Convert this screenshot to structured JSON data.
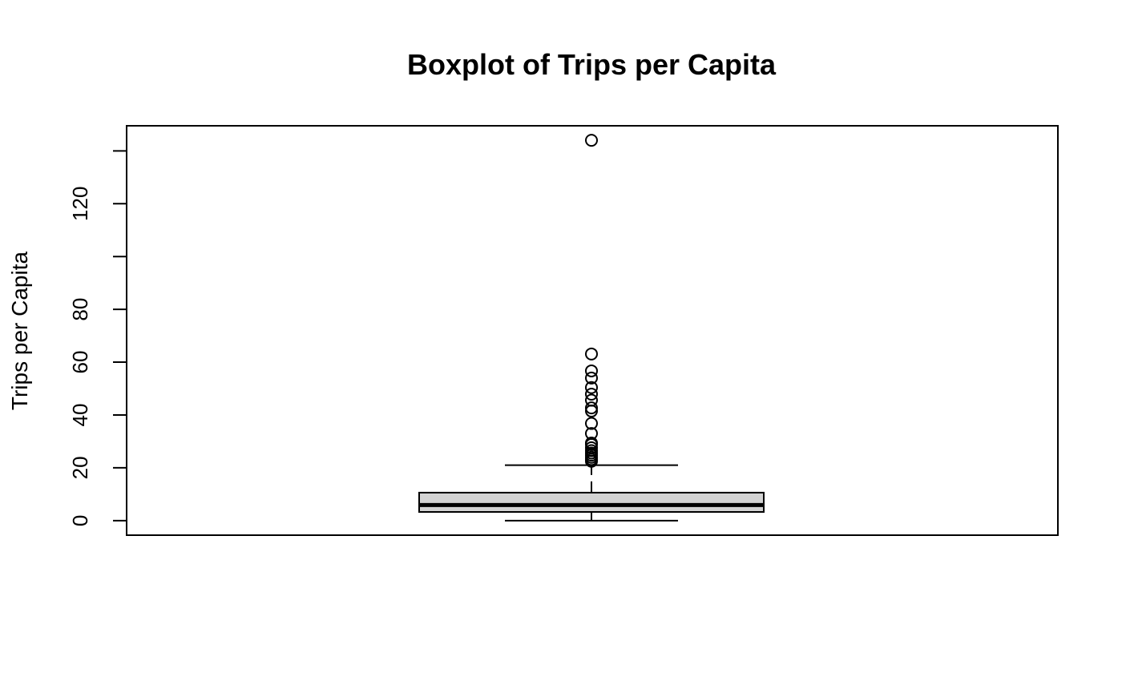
{
  "chart_data": {
    "type": "boxplot",
    "title": "Boxplot of Trips per Capita",
    "xlabel": "",
    "ylabel": "Trips per Capita",
    "ylim": [
      -5.5,
      149.5
    ],
    "yticks": [
      0,
      20,
      40,
      60,
      80,
      100,
      120,
      140
    ],
    "ytick_labels": [
      "0",
      "20",
      "40",
      "60",
      "80",
      "",
      "120",
      ""
    ],
    "grid": false,
    "box": {
      "min": 0,
      "q1": 3.3,
      "median": 5.9,
      "q3": 10.6,
      "max": 21.0,
      "outliers": [
        22.5,
        23.2,
        24.0,
        24.8,
        25.6,
        26.5,
        27.6,
        28.8,
        29.4,
        33.0,
        36.8,
        41.5,
        42.7,
        45.6,
        47.9,
        50.4,
        54.0,
        56.7,
        63.1,
        144.0
      ]
    },
    "colors": {
      "box_fill": "#d3d3d3",
      "stroke": "#000000"
    }
  }
}
